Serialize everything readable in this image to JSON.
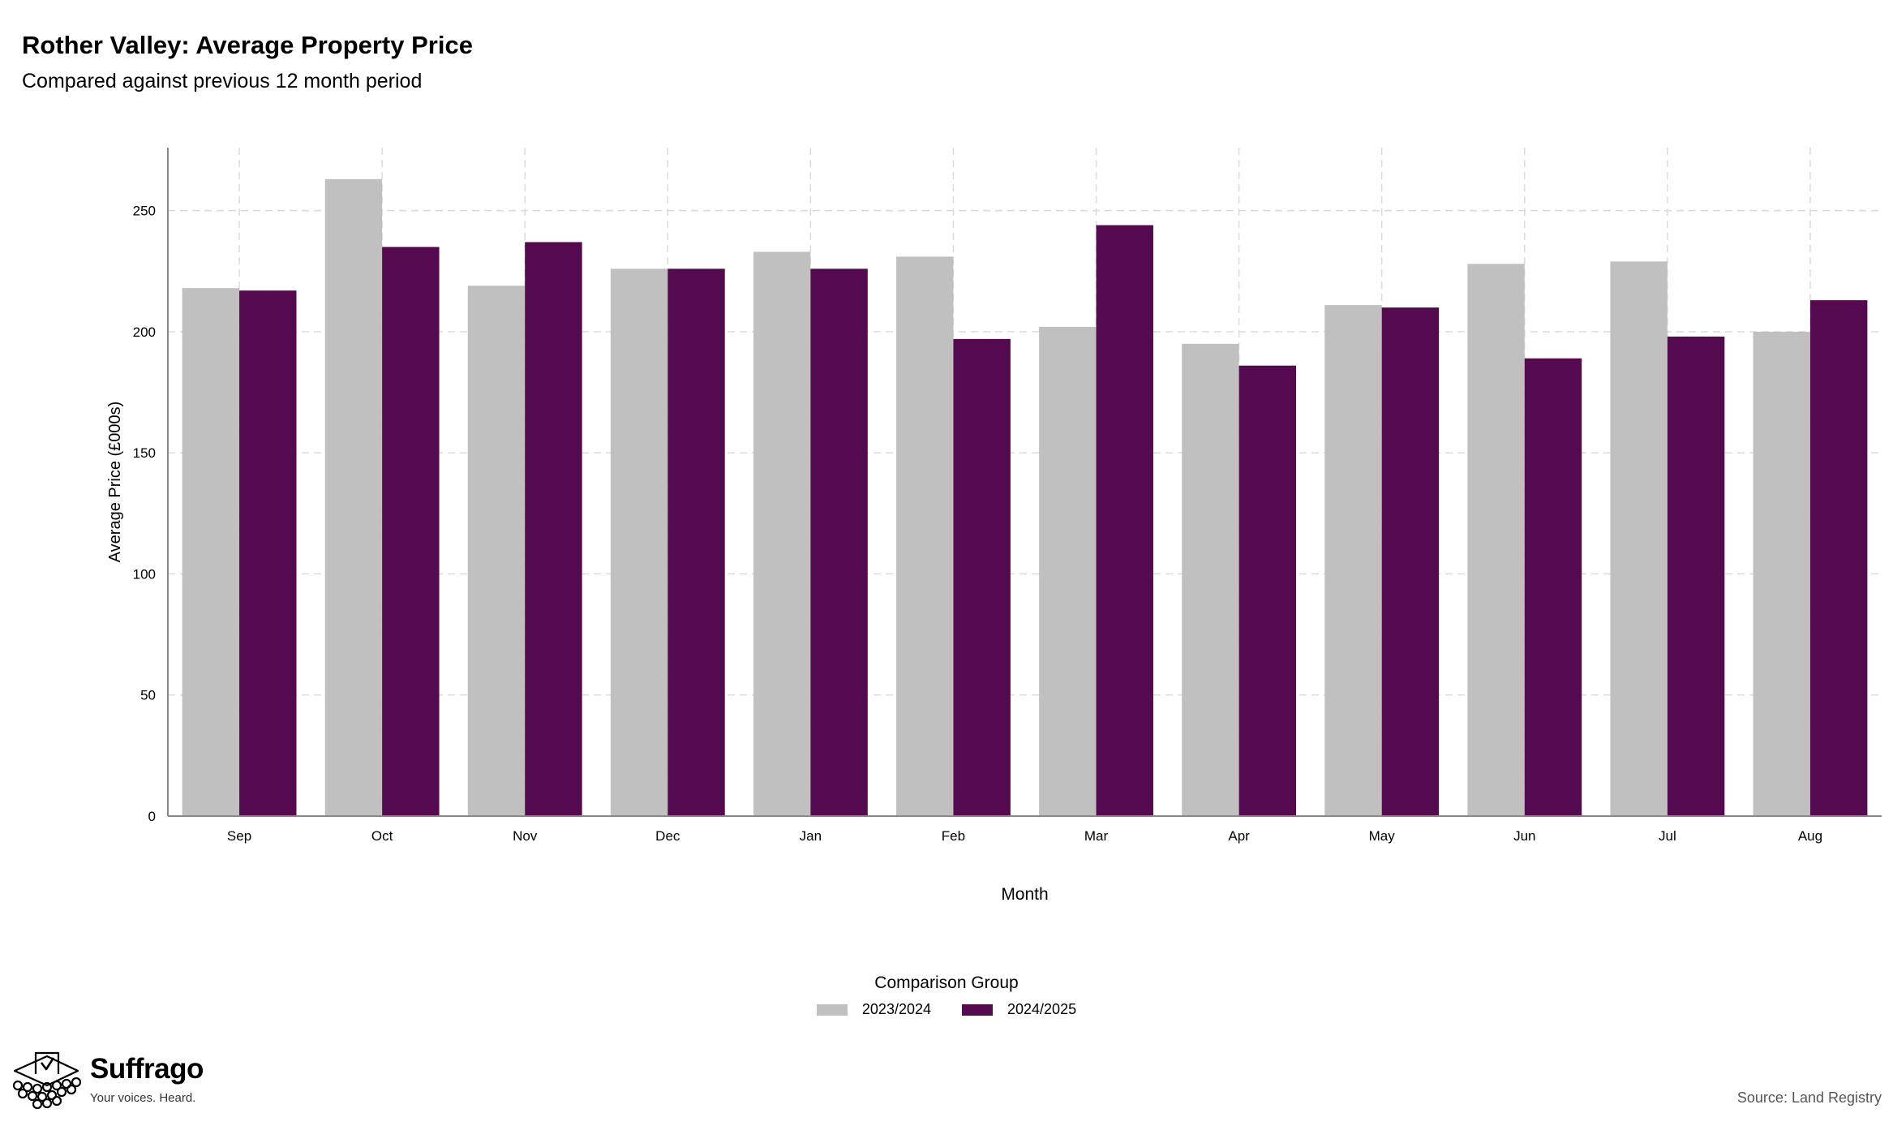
{
  "header": {
    "title": "Rother Valley: Average Property Price",
    "subtitle": "Compared against previous 12 month period"
  },
  "chart_data": {
    "type": "bar",
    "xlabel": "Month",
    "ylabel": "Average Price (£000s)",
    "ylim": [
      0,
      276
    ],
    "yticks": [
      0,
      50,
      100,
      150,
      200,
      250
    ],
    "grid": true,
    "categories": [
      "Sep",
      "Oct",
      "Nov",
      "Dec",
      "Jan",
      "Feb",
      "Mar",
      "Apr",
      "May",
      "Jun",
      "Jul",
      "Aug"
    ],
    "series": [
      {
        "name": "2023/2024",
        "color": "#c0c0c0",
        "values": [
          218,
          263,
          219,
          226,
          233,
          231,
          202,
          195,
          211,
          228,
          229,
          200
        ]
      },
      {
        "name": "2024/2025",
        "color": "#550a50",
        "values": [
          217,
          235,
          237,
          226,
          226,
          197,
          244,
          186,
          210,
          189,
          198,
          213
        ]
      }
    ],
    "legend": {
      "title": "Comparison Group",
      "placement": "bottom"
    }
  },
  "footer": {
    "brand": "Suffrago",
    "tagline": "Your voices. Heard.",
    "logo_icon": "ballot-box-icon",
    "source": "Source: Land Registry"
  }
}
